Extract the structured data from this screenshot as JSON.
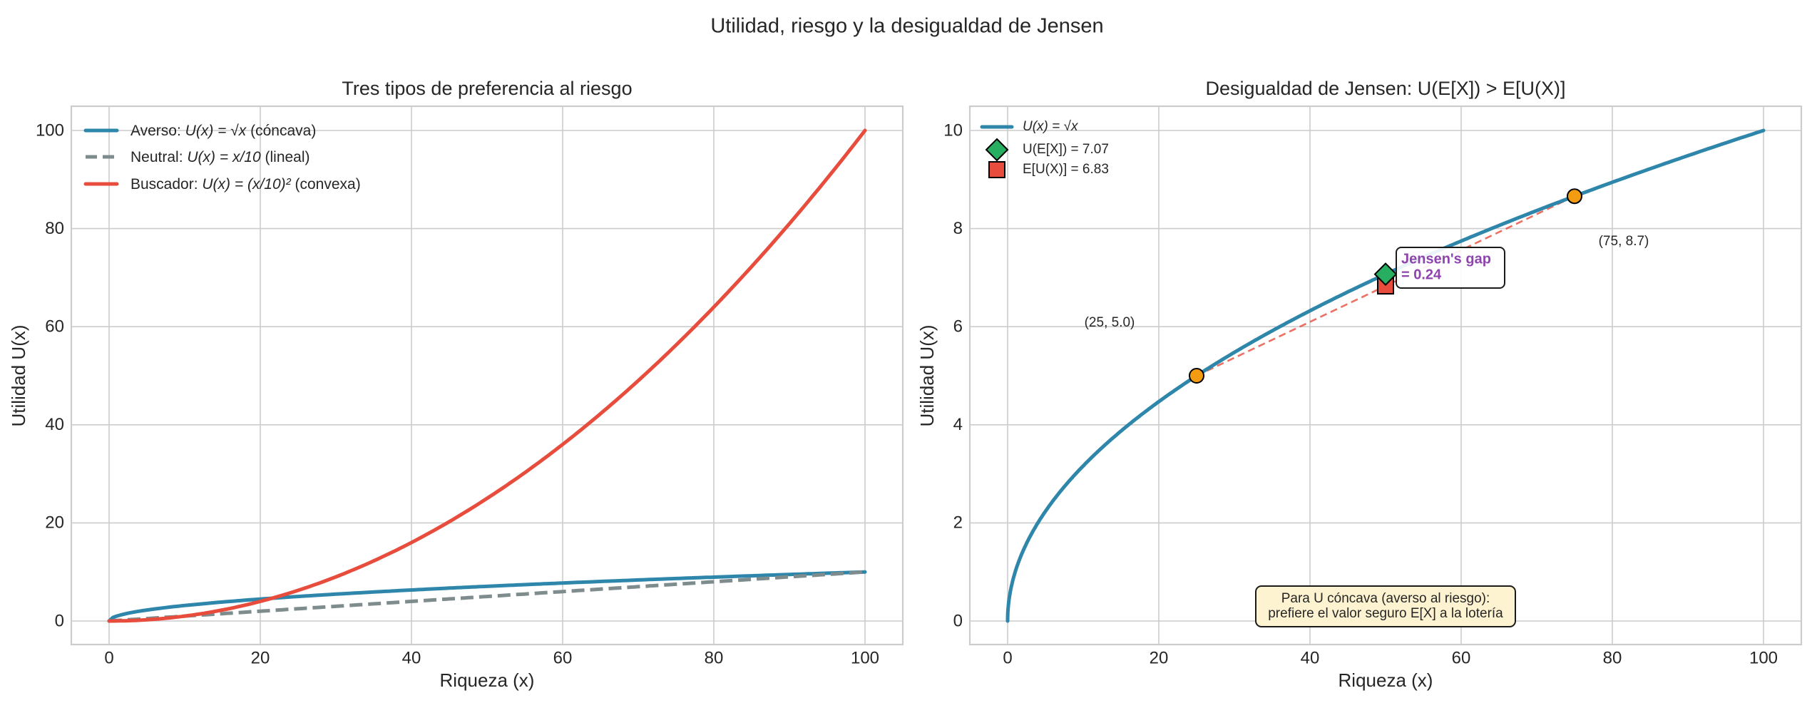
{
  "figure": {
    "suptitle": "Utilidad, riesgo y la desigualdad de Jensen"
  },
  "chart_data": [
    {
      "type": "line",
      "title": "Tres tipos de preferencia al riesgo",
      "xlabel": "Riqueza (x)",
      "ylabel": "Utilidad U(x)",
      "xlim": [
        -5,
        105
      ],
      "ylim": [
        -5,
        105
      ],
      "xticks": [
        "0",
        "20",
        "40",
        "60",
        "80",
        "100"
      ],
      "yticks": [
        "0",
        "20",
        "40",
        "60",
        "80",
        "100"
      ],
      "grid": true,
      "legend_position": "upper left",
      "x": [
        0,
        5,
        10,
        15,
        20,
        25,
        30,
        35,
        40,
        45,
        50,
        55,
        60,
        65,
        70,
        75,
        80,
        85,
        90,
        95,
        100
      ],
      "series": [
        {
          "name": "Averso: U(x) = √x (cóncava)",
          "legend_prefix": "Averso: ",
          "legend_math": "U(x) = √x",
          "legend_suffix": " (cóncava)",
          "color": "#2e86ab",
          "style": "solid",
          "values": [
            0,
            2.24,
            3.16,
            3.87,
            4.47,
            5.0,
            5.48,
            5.92,
            6.32,
            6.71,
            7.07,
            7.42,
            7.75,
            8.06,
            8.37,
            8.66,
            8.94,
            9.22,
            9.49,
            9.75,
            10.0
          ]
        },
        {
          "name": "Neutral: U(x) = x/10 (lineal)",
          "legend_prefix": "Neutral: ",
          "legend_math": "U(x) = x/10",
          "legend_suffix": " (lineal)",
          "color": "#7f8c8d",
          "style": "dashed",
          "values": [
            0,
            0.5,
            1,
            1.5,
            2,
            2.5,
            3,
            3.5,
            4,
            4.5,
            5,
            5.5,
            6,
            6.5,
            7,
            7.5,
            8,
            8.5,
            9,
            9.5,
            10
          ]
        },
        {
          "name": "Buscador: U(x) = (x/10)^2 (convexa)",
          "legend_prefix": "Buscador: ",
          "legend_math": "U(x) = (x/10)²",
          "legend_suffix": " (convexa)",
          "color": "#e74c3c",
          "style": "solid",
          "values": [
            0,
            0.25,
            1,
            2.25,
            4,
            6.25,
            9,
            12.25,
            16,
            20.25,
            25,
            30.25,
            36,
            42.25,
            49,
            56.25,
            64,
            72.25,
            81,
            90.25,
            100
          ]
        }
      ]
    },
    {
      "type": "line",
      "title": "Desigualdad de Jensen: U(E[X]) > E[U(X)]",
      "xlabel": "Riqueza (x)",
      "ylabel": "Utilidad U(x)",
      "xlim": [
        -5,
        105
      ],
      "ylim": [
        -0.5,
        10.5
      ],
      "xticks": [
        "0",
        "20",
        "40",
        "60",
        "80",
        "100"
      ],
      "yticks": [
        "0",
        "2",
        "4",
        "6",
        "8",
        "10"
      ],
      "grid": true,
      "legend_position": "upper left",
      "series": [
        {
          "name": "U(x) = √x",
          "color": "#2e86ab",
          "style": "solid",
          "function": "sqrt",
          "x_range": [
            0,
            100
          ]
        },
        {
          "name": "chord",
          "color": "#e74c3c",
          "style": "dashed",
          "x": [
            25,
            75
          ],
          "values": [
            5.0,
            8.66
          ]
        }
      ],
      "points": [
        {
          "name": "lottery-outcome-low",
          "x": 25,
          "y": 5.0,
          "marker": "circle",
          "color": "#f39c12",
          "label": "(25, 5.0)"
        },
        {
          "name": "lottery-outcome-high",
          "x": 75,
          "y": 8.66,
          "marker": "circle",
          "color": "#f39c12",
          "label": "(75, 8.7)"
        },
        {
          "name": "U(E[X]) = 7.07",
          "x": 50,
          "y": 7.07,
          "marker": "diamond",
          "color": "#27ae60"
        },
        {
          "name": "E[U(X)] = 6.83",
          "x": 50,
          "y": 6.83,
          "marker": "square",
          "color": "#e74c3c"
        }
      ],
      "legend": [
        "U(x) = √x",
        "U(E[X]) = 7.07",
        "E[U(X)] = 6.83"
      ],
      "annotations": {
        "gap_line1": "Jensen's gap",
        "gap_line2": "= 0.24",
        "gap_color": "#8e44ad",
        "note_line1": "Para U cóncava (averso al riesgo):",
        "note_line2": "prefiere el valor seguro E[X] a la lotería",
        "note_bg": "#fdf3d0"
      }
    }
  ]
}
